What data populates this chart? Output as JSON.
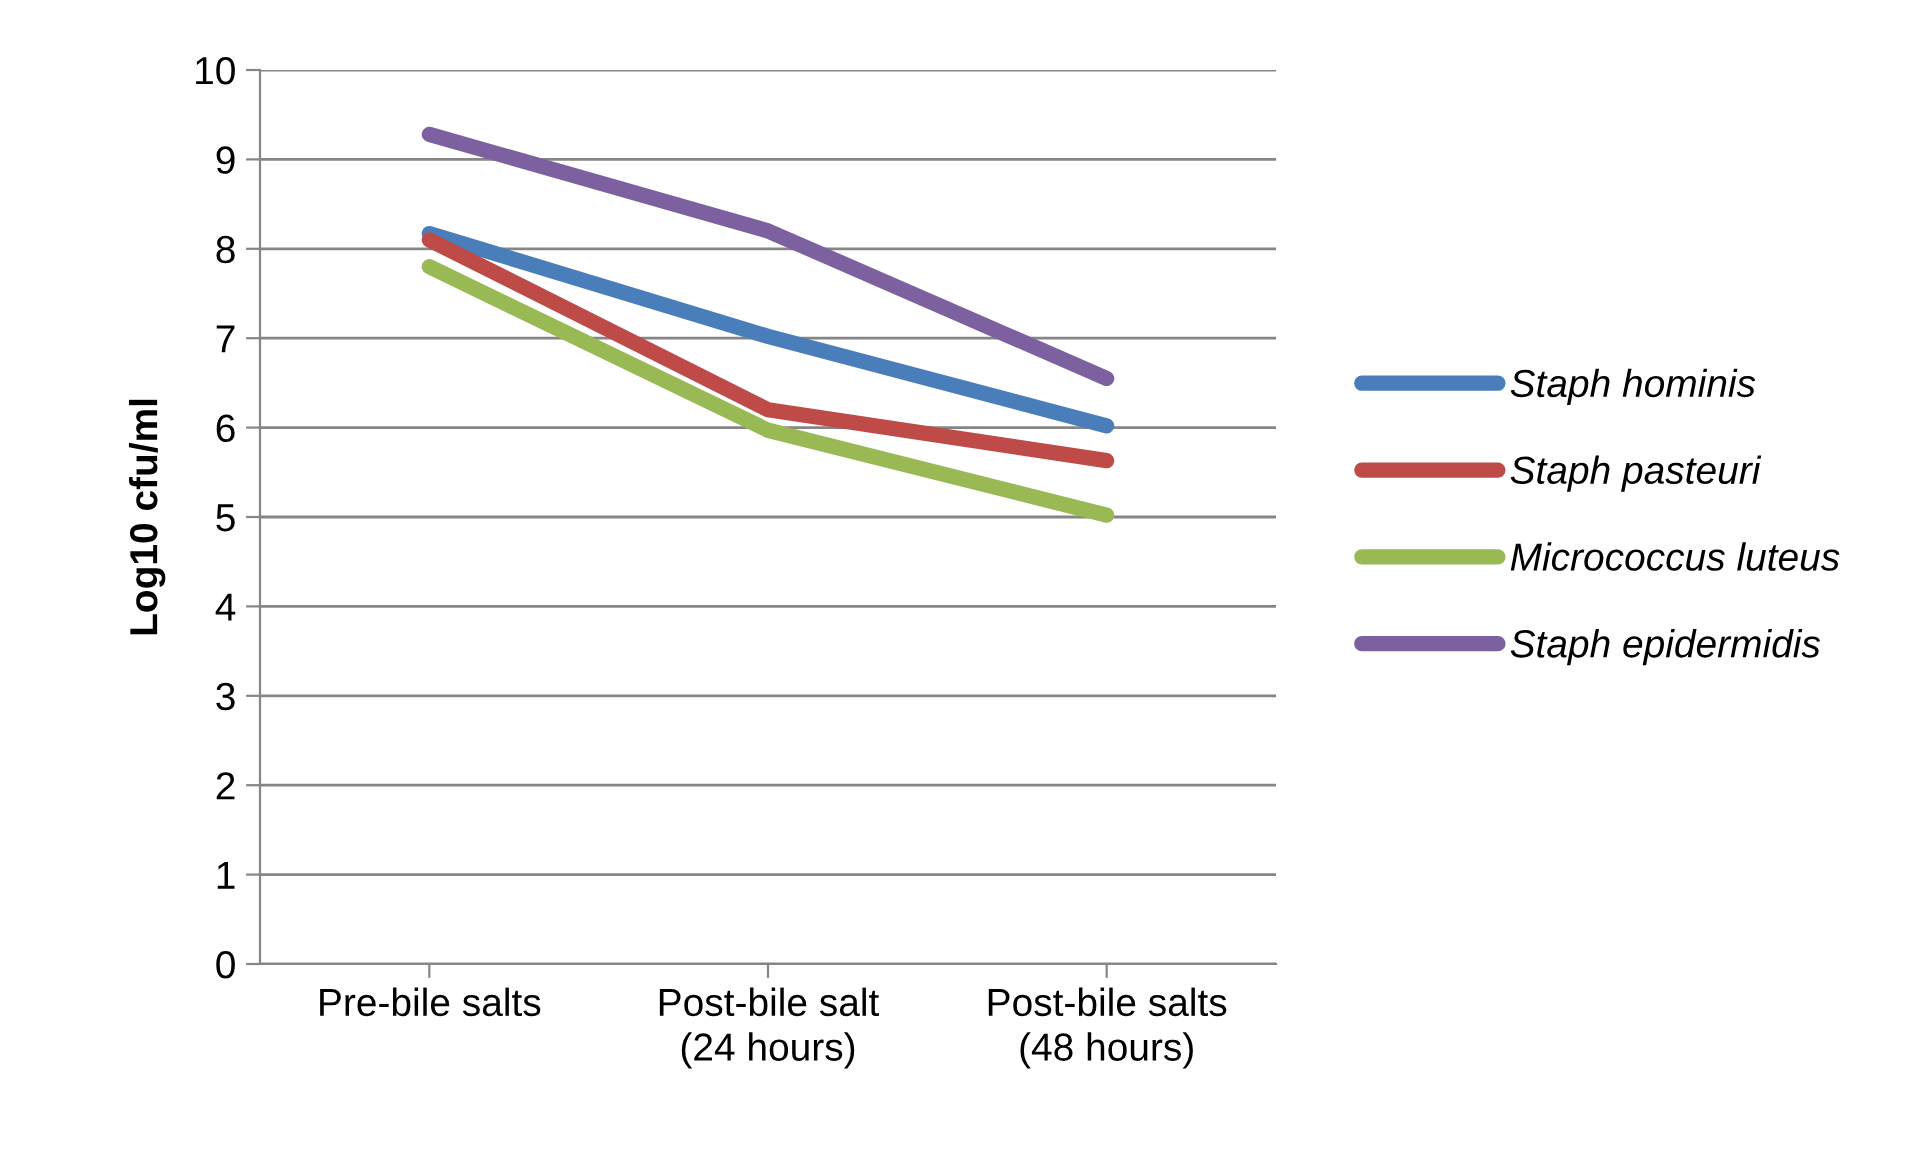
{
  "chart_data": {
    "type": "line",
    "ylabel": "Log10 cfu/ml",
    "categories": [
      "Pre-bile salts",
      "Post-bile salt\n(24 hours)",
      "Post-bile salts\n(48 hours)"
    ],
    "series": [
      {
        "name": "Staph hominis",
        "color": "#4a7ebb",
        "values": [
          8.17,
          7.02,
          6.02
        ]
      },
      {
        "name": "Staph pasteuri",
        "color": "#be4b48",
        "values": [
          8.1,
          6.2,
          5.63
        ]
      },
      {
        "name": "Micrococcus luteus",
        "color": "#98b954",
        "values": [
          7.8,
          5.97,
          5.02
        ]
      },
      {
        "name": "Staph epidermidis",
        "color": "#7d60a0",
        "values": [
          9.28,
          8.2,
          6.55
        ]
      }
    ],
    "ylim": [
      0,
      10
    ],
    "yticks": [
      0,
      1,
      2,
      3,
      4,
      5,
      6,
      7,
      8,
      9,
      10
    ],
    "grid": "y",
    "legend": "right",
    "marker": "none",
    "line_style": "solid"
  }
}
